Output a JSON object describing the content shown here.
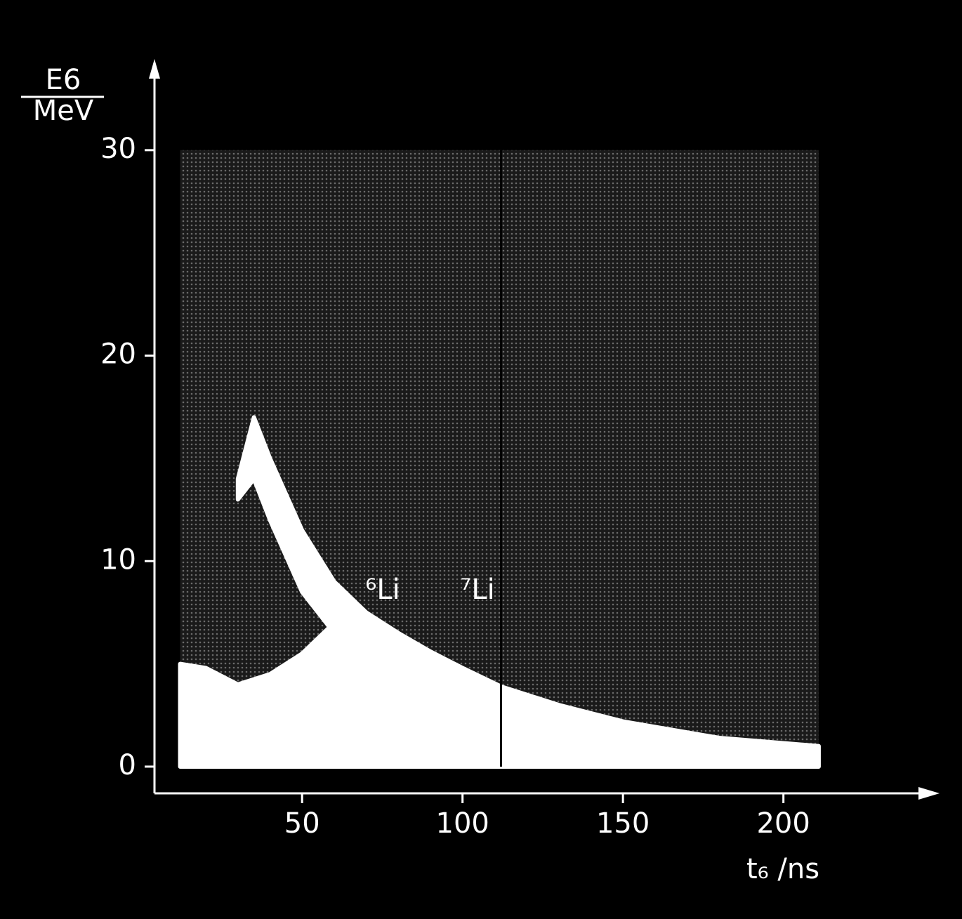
{
  "chart_data": {
    "type": "density",
    "ylabel": {
      "numerator": "E6",
      "denominator": "MeV"
    },
    "xlabel": "t₆ /ns",
    "xlim": [
      4,
      248
    ],
    "ylim": [
      -1.3,
      34.3
    ],
    "xticks": [
      50,
      100,
      150,
      200
    ],
    "yticks": [
      0,
      10,
      20,
      30
    ],
    "field": {
      "xlim": [
        12,
        211
      ],
      "ylim": [
        0,
        30
      ]
    },
    "gap_x": 112,
    "bands": [
      {
        "x": [
          12,
          20,
          30,
          40,
          50,
          60,
          70,
          80,
          90,
          100,
          112,
          130,
          150,
          180,
          211
        ],
        "upper": [
          5,
          4.8,
          4,
          4.5,
          5.5,
          7,
          7.5,
          6.5,
          5.6,
          4.8,
          3.9,
          3,
          2.2,
          1.4,
          1
        ],
        "lower": [
          0,
          0,
          0,
          0,
          0,
          0,
          0,
          0,
          0,
          0,
          0,
          0,
          0,
          0,
          0
        ]
      },
      {
        "x": [
          30,
          35,
          40,
          50,
          60,
          70
        ],
        "upper": [
          14,
          17,
          15,
          11.5,
          9,
          7.5
        ],
        "lower": [
          13,
          14,
          12,
          8.5,
          6.5,
          6
        ]
      }
    ],
    "annotations": [
      "⁶Li",
      "⁷Li"
    ]
  }
}
